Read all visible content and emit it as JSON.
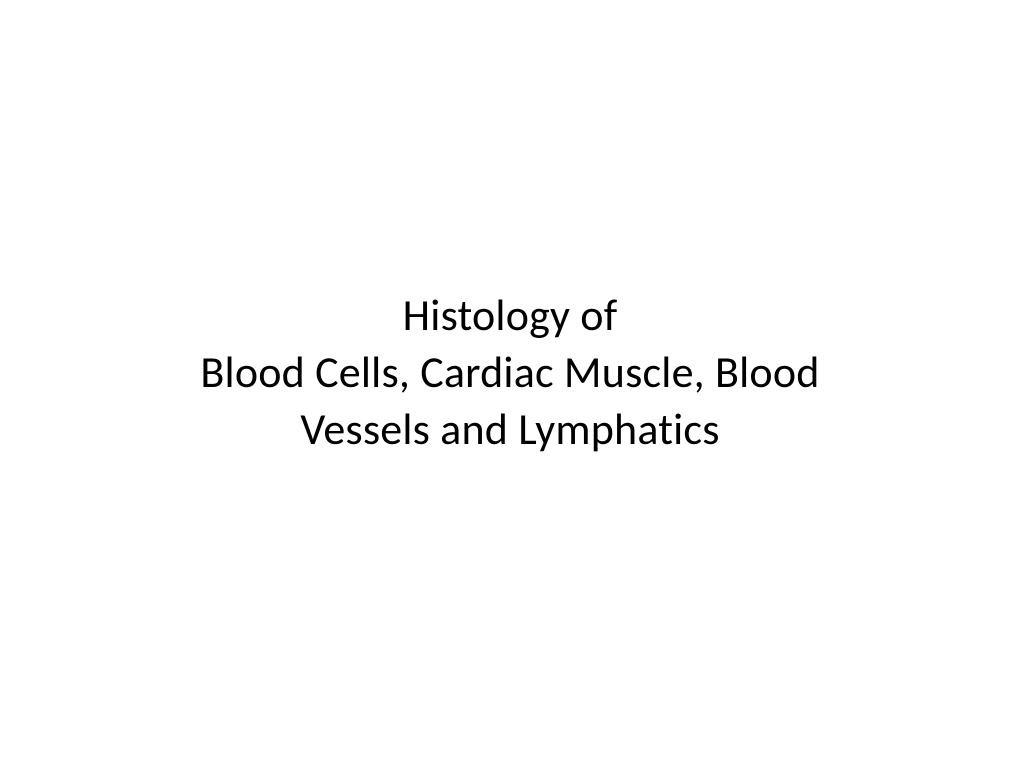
{
  "slide": {
    "title_line1": "Histology of",
    "title_line2": "Blood Cells, Cardiac Muscle, Blood",
    "title_line3": "Vessels and Lymphatics",
    "text_color": "#000000",
    "background_color": "#ffffff",
    "font_size": 44,
    "font_family": "Calibri",
    "font_weight": 400
  }
}
